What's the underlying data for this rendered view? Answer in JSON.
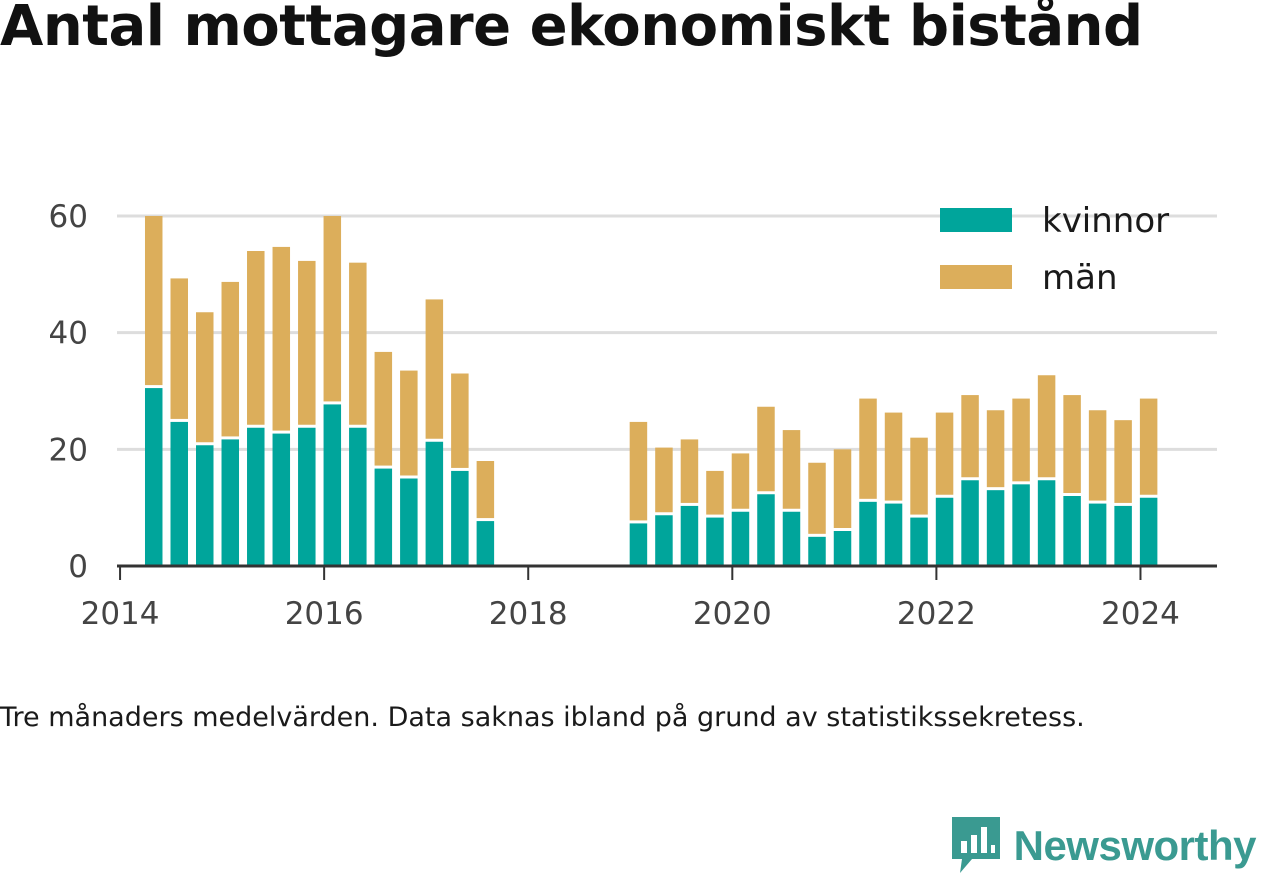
{
  "title": "Antal mottagare ekonomiskt bistånd",
  "caption": "Tre månaders medelvärden. Data saknas ibland på grund av statistikssekretess.",
  "brand": {
    "name": "Newsworthy",
    "color": "#3a9a91",
    "icon": "bar-chart-speech-bubble-icon"
  },
  "colors": {
    "kvinnor": "#00a59b",
    "man": "#dcae5b",
    "grid": "#dddddd",
    "axis": "#333333"
  },
  "chart_data": {
    "type": "bar",
    "stacked": true,
    "x_unit": "year",
    "xlim": [
      2013.97,
      2024.75
    ],
    "ylim": [
      0,
      60
    ],
    "x_ticks": [
      2014,
      2016,
      2018,
      2020,
      2022,
      2024
    ],
    "y_ticks": [
      0,
      20,
      40,
      60
    ],
    "grid": true,
    "legend_position": "top-right",
    "series": [
      {
        "name": "kvinnor",
        "color": "#00a59b"
      },
      {
        "name": "män",
        "color": "#dcae5b"
      }
    ],
    "x": [
      2014.33,
      2014.58,
      2014.83,
      2015.08,
      2015.33,
      2015.58,
      2015.83,
      2016.08,
      2016.33,
      2016.58,
      2016.83,
      2017.08,
      2017.33,
      2017.58,
      2019.08,
      2019.33,
      2019.58,
      2019.83,
      2020.08,
      2020.33,
      2020.58,
      2020.83,
      2021.08,
      2021.33,
      2021.58,
      2021.83,
      2022.08,
      2022.33,
      2022.58,
      2022.83,
      2023.08,
      2023.33,
      2023.58,
      2023.83,
      2024.08
    ],
    "kvinnor": [
      30.5,
      24.7,
      20.7,
      21.7,
      23.7,
      22.7,
      23.7,
      27.7,
      23.7,
      16.7,
      15,
      21.3,
      16.3,
      7.7,
      7.3,
      8.7,
      10.3,
      8.3,
      9.3,
      12.3,
      9.3,
      5,
      6,
      11,
      10.7,
      8.3,
      11.7,
      14.7,
      13,
      14,
      14.7,
      12,
      10.7,
      10.3,
      11.7
    ],
    "total": [
      60,
      49.3,
      43.5,
      48.7,
      54,
      54.7,
      52.3,
      60,
      52,
      36.7,
      33.5,
      45.7,
      33,
      18,
      24.7,
      20.3,
      21.7,
      16.3,
      19.3,
      27.3,
      23.3,
      17.7,
      20,
      28.7,
      26.3,
      22,
      26.3,
      29.3,
      26.7,
      28.7,
      32.7,
      29.3,
      26.7,
      25,
      28.7
    ]
  }
}
